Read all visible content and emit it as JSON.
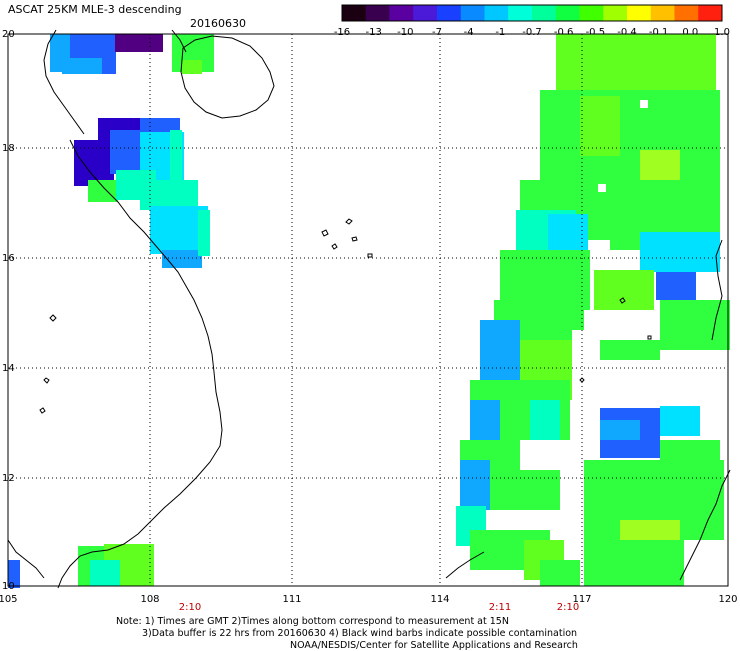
{
  "title": {
    "line1": "ASCAT 25KM MLE-3 descending",
    "date": "20160630"
  },
  "colorbar": {
    "labels": [
      "-16",
      "-13",
      "-10",
      "-7",
      "-4",
      "-1",
      "-0.7",
      "-0.6",
      "-0.5",
      "-0.4",
      "-0.1",
      "0.0",
      "1.0"
    ],
    "colors": [
      "#1a0010",
      "#3a0050",
      "#5a00a0",
      "#4a1ad8",
      "#1a40ff",
      "#0a8aff",
      "#00c8ff",
      "#00ffd8",
      "#00ff9a",
      "#10ff40",
      "#40ff00",
      "#a0ff00",
      "#ffff00",
      "#ffc000",
      "#ff7000",
      "#ff2010"
    ]
  },
  "map": {
    "lon_labels": [
      "105",
      "108",
      "111",
      "114",
      "117",
      "120"
    ],
    "lat_labels": [
      "20",
      "18",
      "16",
      "14",
      "12",
      "10"
    ],
    "pass_times": [
      "2:10",
      "2:11",
      "2:10"
    ],
    "colors": {
      "deep_purple": "#2a00c8",
      "blue": "#2060ff",
      "sky": "#10a8ff",
      "cyan": "#00e0ff",
      "aqua": "#00ffc0",
      "green": "#30ff40",
      "lime": "#60ff20",
      "yellow_green": "#a0ff20",
      "dark_purple": "#500080"
    }
  },
  "notes": {
    "line1": "Note: 1) Times are GMT 2)Times along bottom correspond to measurement at 15N",
    "line2": "3)Data buffer is 22 hrs from 20160630 4) Black wind barbs indicate possible contamination",
    "line3": "NOAA/NESDIS/Center for Satellite Applications and Research"
  }
}
